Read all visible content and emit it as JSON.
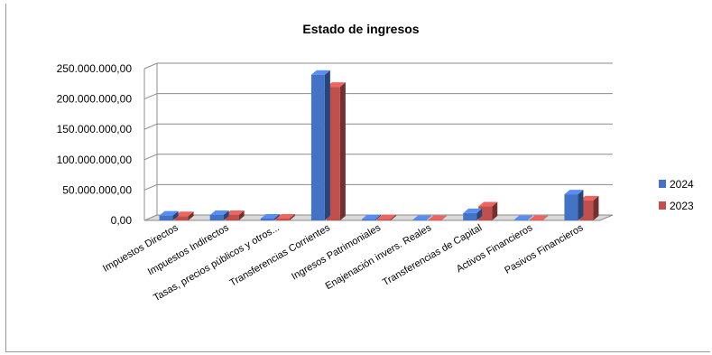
{
  "chart_data": {
    "type": "bar",
    "title": "Estado de ingresos",
    "xlabel": "",
    "ylabel": "",
    "ylim": [
      0,
      250000000
    ],
    "yticks": [
      0,
      50000000,
      100000000,
      150000000,
      200000000,
      250000000
    ],
    "ytick_labels": [
      "0,00",
      "50.000.000,00",
      "100.000.000,00",
      "150.000.000,00",
      "200.000.000,00",
      "250.000.000,00"
    ],
    "grid": true,
    "legend_position": "right",
    "categories": [
      "Impuestos Directos",
      "Impuestos Indirectos",
      "Tasas, precios públicos y otros...",
      "Transferencias Corrientes",
      "Ingresos Patrimoniales",
      "Enajenación invers. Reales",
      "Transferencias de Capital",
      "Activos Financieros",
      "Pasivos Financieros"
    ],
    "series": [
      {
        "name": "2024",
        "color": "#4472C4",
        "values": [
          8000000,
          9000000,
          3000000,
          240000000,
          2000000,
          500000,
          12000000,
          500000,
          43000000
        ]
      },
      {
        "name": "2023",
        "color": "#C0504D",
        "values": [
          7000000,
          9000000,
          3000000,
          220000000,
          2000000,
          500000,
          23000000,
          500000,
          33000000
        ]
      }
    ]
  }
}
